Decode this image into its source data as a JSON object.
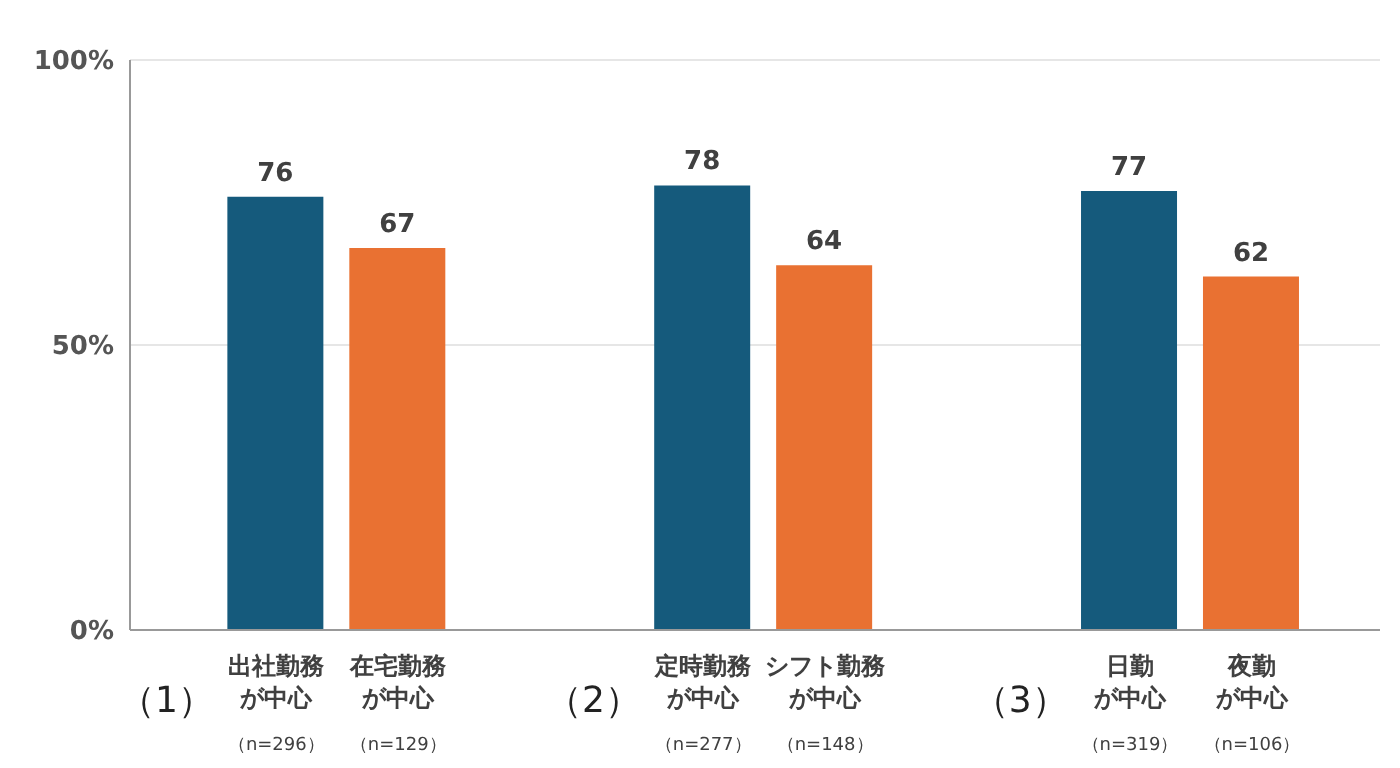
{
  "chart_data": {
    "type": "bar",
    "categories": [
      "出社勤務が中心（n=296）",
      "在宅勤務が中心（n=129）",
      "定時勤務が中心（n=277）",
      "シフト勤務が中心（n=148）",
      "日勤が中心（n=319）",
      "夜勤が中心（n=106）"
    ],
    "values": [
      76,
      67,
      78,
      64,
      77,
      62
    ],
    "colors": [
      "#155a7c",
      "#e97132",
      "#155a7c",
      "#e97132",
      "#155a7c",
      "#e97132"
    ],
    "ylim": [
      0,
      100
    ],
    "yticks": [
      {
        "value": 0,
        "label": "0%"
      },
      {
        "value": 50,
        "label": "50%"
      },
      {
        "value": 100,
        "label": "100%"
      }
    ],
    "grid": "y",
    "data_labels": true,
    "annotations": [
      "（1）",
      "（2）",
      "（3）"
    ]
  }
}
